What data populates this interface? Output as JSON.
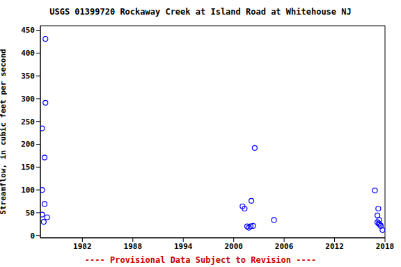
{
  "chart_data": {
    "type": "scatter",
    "title": "USGS 01399720 Rockaway Creek at Island Road at Whitehouse NJ",
    "y_label": "Streamflow, in cubic feet per second",
    "annotations": [
      "---- Provisional Data Subject to Revision ----"
    ],
    "x": [
      1977.2,
      1977.2,
      1977.2,
      1977.4,
      1977.6,
      1977.6,
      1977.5,
      1977.5,
      1977.8,
      2001.05,
      2001.3,
      2001.6,
      2001.8,
      2002.0,
      2002.1,
      2002.3,
      2002.5,
      2004.8,
      2016.8,
      2017.1,
      2017.2,
      2017.1,
      2017.3,
      2017.4,
      2017.5,
      2017.7,
      2017.25
    ],
    "values": [
      235,
      100,
      46,
      30,
      431,
      291,
      171,
      69,
      40,
      64,
      59,
      20,
      17,
      20,
      76,
      21,
      192,
      34,
      99,
      44,
      59,
      29,
      34,
      24,
      21,
      12,
      26
    ],
    "color": "#0000ff",
    "marker": "circle",
    "xlim": [
      1977,
      2018
    ],
    "xticks": [
      1982,
      1988,
      1994,
      2000,
      2006,
      2012,
      2018
    ],
    "ylim": [
      -5,
      460
    ],
    "yticks": [
      0,
      50,
      100,
      150,
      200,
      250,
      300,
      350,
      400,
      450
    ],
    "grid": false
  }
}
